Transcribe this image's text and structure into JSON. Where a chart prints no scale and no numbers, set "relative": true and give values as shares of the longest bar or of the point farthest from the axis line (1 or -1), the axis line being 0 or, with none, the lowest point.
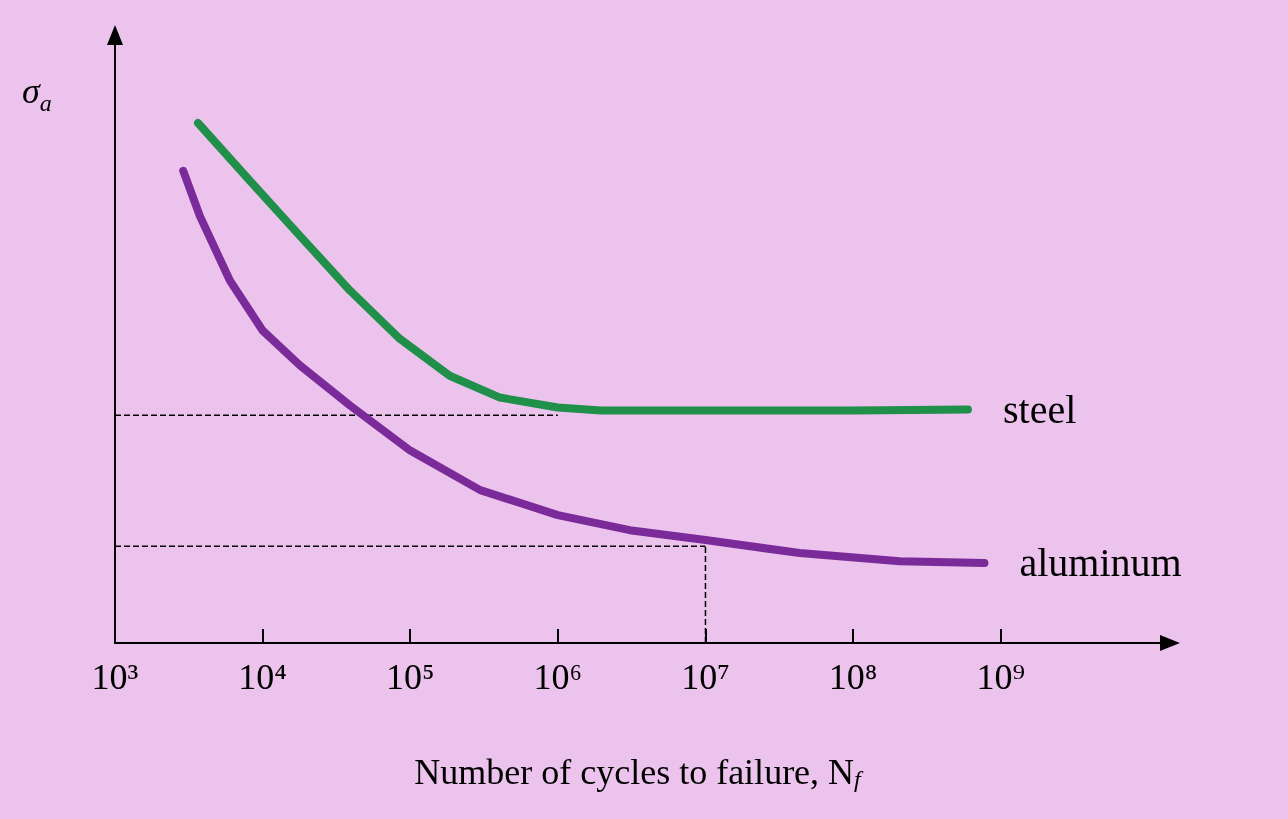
{
  "chart_data": {
    "type": "line",
    "relative": true,
    "xlabel": "Number of cycles to failure, N$_{f}$",
    "ylabel": "σ$_{a}$",
    "log": "x",
    "xlim": [
      1000,
      12000000000
    ],
    "xticks": [
      {
        "value": 1000,
        "label": "10³"
      },
      {
        "value": 10000,
        "label": "10⁴"
      },
      {
        "value": 100000,
        "label": "10⁵"
      },
      {
        "value": 1000000,
        "label": "10⁶"
      },
      {
        "value": 10000000,
        "label": "10⁷"
      },
      {
        "value": 100000000,
        "label": "10⁸"
      },
      {
        "value": 1000000000,
        "label": "10⁹"
      }
    ],
    "series": [
      {
        "name": "steel",
        "color": "#1f8f4a",
        "x": [
          3650,
          8200,
          17900,
          39000,
          85000,
          185000,
          405000,
          1000000,
          1960000,
          10000000,
          100000000,
          600000000
        ],
        "values": [
          1.0,
          0.889,
          0.783,
          0.678,
          0.585,
          0.514,
          0.472,
          0.453,
          0.447,
          0.447,
          0.447,
          0.449
        ]
      },
      {
        "name": "aluminum",
        "color": "#7b2a9a",
        "x": [
          2900,
          3760,
          6000,
          10000,
          17900,
          39000,
          100000,
          298000,
          1000000,
          3070000,
          10000000,
          43500000,
          207000000,
          776000000
        ],
        "values": [
          0.908,
          0.821,
          0.697,
          0.601,
          0.534,
          0.457,
          0.37,
          0.294,
          0.246,
          0.217,
          0.198,
          0.173,
          0.157,
          0.154
        ]
      }
    ],
    "ref_lines": [
      {
        "axis": "y",
        "value": 0.438,
        "line_style": "dashed"
      },
      {
        "axis": "y",
        "value": 0.186,
        "line_style": "dashed"
      },
      {
        "axis": "x",
        "value": 10000000,
        "line_style": "dashed"
      }
    ],
    "grid": false,
    "legend": false,
    "line_style": "solid"
  }
}
